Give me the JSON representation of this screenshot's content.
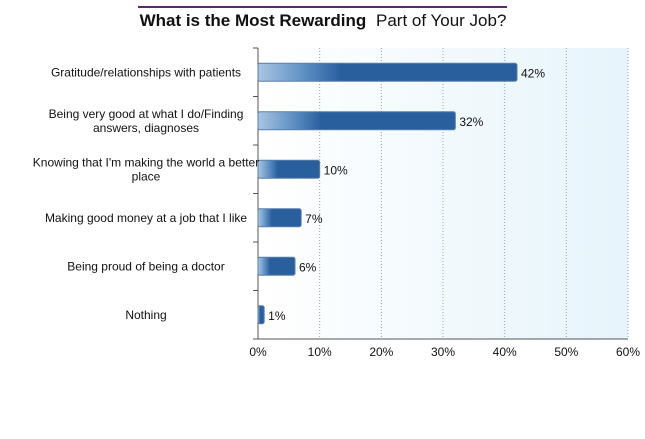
{
  "chart_data": {
    "type": "bar",
    "orientation": "horizontal",
    "title_bold": "What is the Most Rewarding",
    "title_rest": "Part of Your Job?",
    "title_rule_color": "#5b2a6e",
    "bar_color": "#2a5f9e",
    "plot_bg": "#eef7fc",
    "grid": true,
    "xlim": [
      0,
      60
    ],
    "xticks": [
      0,
      10,
      20,
      30,
      40,
      50,
      60
    ],
    "tick_suffix": "%",
    "categories": [
      [
        "Gratitude/relationships with patients"
      ],
      [
        "Being very good at what I do/Finding",
        "answers, diagnoses"
      ],
      [
        "Knowing that I'm making the world a better",
        "place"
      ],
      [
        "Making good money at a job that I like"
      ],
      [
        "Being proud of being a doctor"
      ],
      [
        "Nothing"
      ]
    ],
    "values": [
      42,
      32,
      10,
      7,
      6,
      1
    ],
    "value_labels": [
      "42%",
      "32%",
      "10%",
      "7%",
      "6%",
      "1%"
    ]
  }
}
